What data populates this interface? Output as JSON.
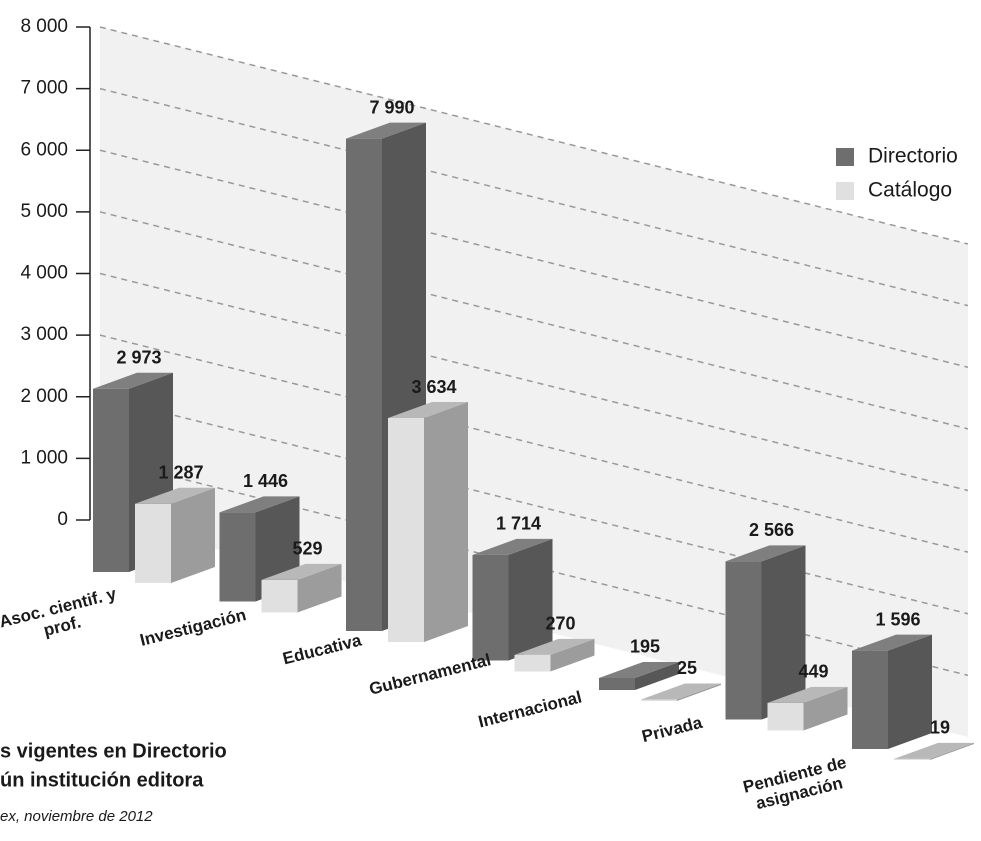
{
  "chart_data": {
    "type": "bar3d",
    "title": [
      "s vigentes en Directorio",
      "ún institución editora"
    ],
    "subtitle": "ex, noviembre de 2012",
    "categories": [
      "Asoc. cientif. y prof.",
      "Investigación",
      "Educativa",
      "Gubernamental",
      "Internacional",
      "Privada",
      "Pendiente de asignación"
    ],
    "series": [
      {
        "name": "Directorio",
        "color": "#6e6e6e",
        "values": [
          2973,
          1446,
          7990,
          1714,
          195,
          2566,
          1596
        ],
        "value_labels": [
          "2 973",
          "1 446",
          "7 990",
          "1 714",
          "195",
          "2 566",
          "1 596"
        ]
      },
      {
        "name": "Catálogo",
        "color": "#dedede",
        "values": [
          1287,
          529,
          3634,
          270,
          25,
          449,
          19
        ],
        "value_labels": [
          "1 287",
          "529",
          "3 634",
          "270",
          "25",
          "449",
          "19"
        ]
      }
    ],
    "ylim": [
      0,
      8000
    ],
    "yticks": [
      0,
      {
        "value": 1000,
        "label": "1 000"
      },
      {
        "value": 2000,
        "label": "2 000"
      },
      {
        "value": 3000,
        "label": "3 000"
      },
      {
        "value": 4000,
        "label": "4 000"
      },
      {
        "value": 5000,
        "label": "5 000"
      },
      {
        "value": 6000,
        "label": "6 000"
      },
      {
        "value": 7000,
        "label": "7 000"
      },
      {
        "value": 8000,
        "label": "8 000"
      }
    ],
    "grid": true
  }
}
